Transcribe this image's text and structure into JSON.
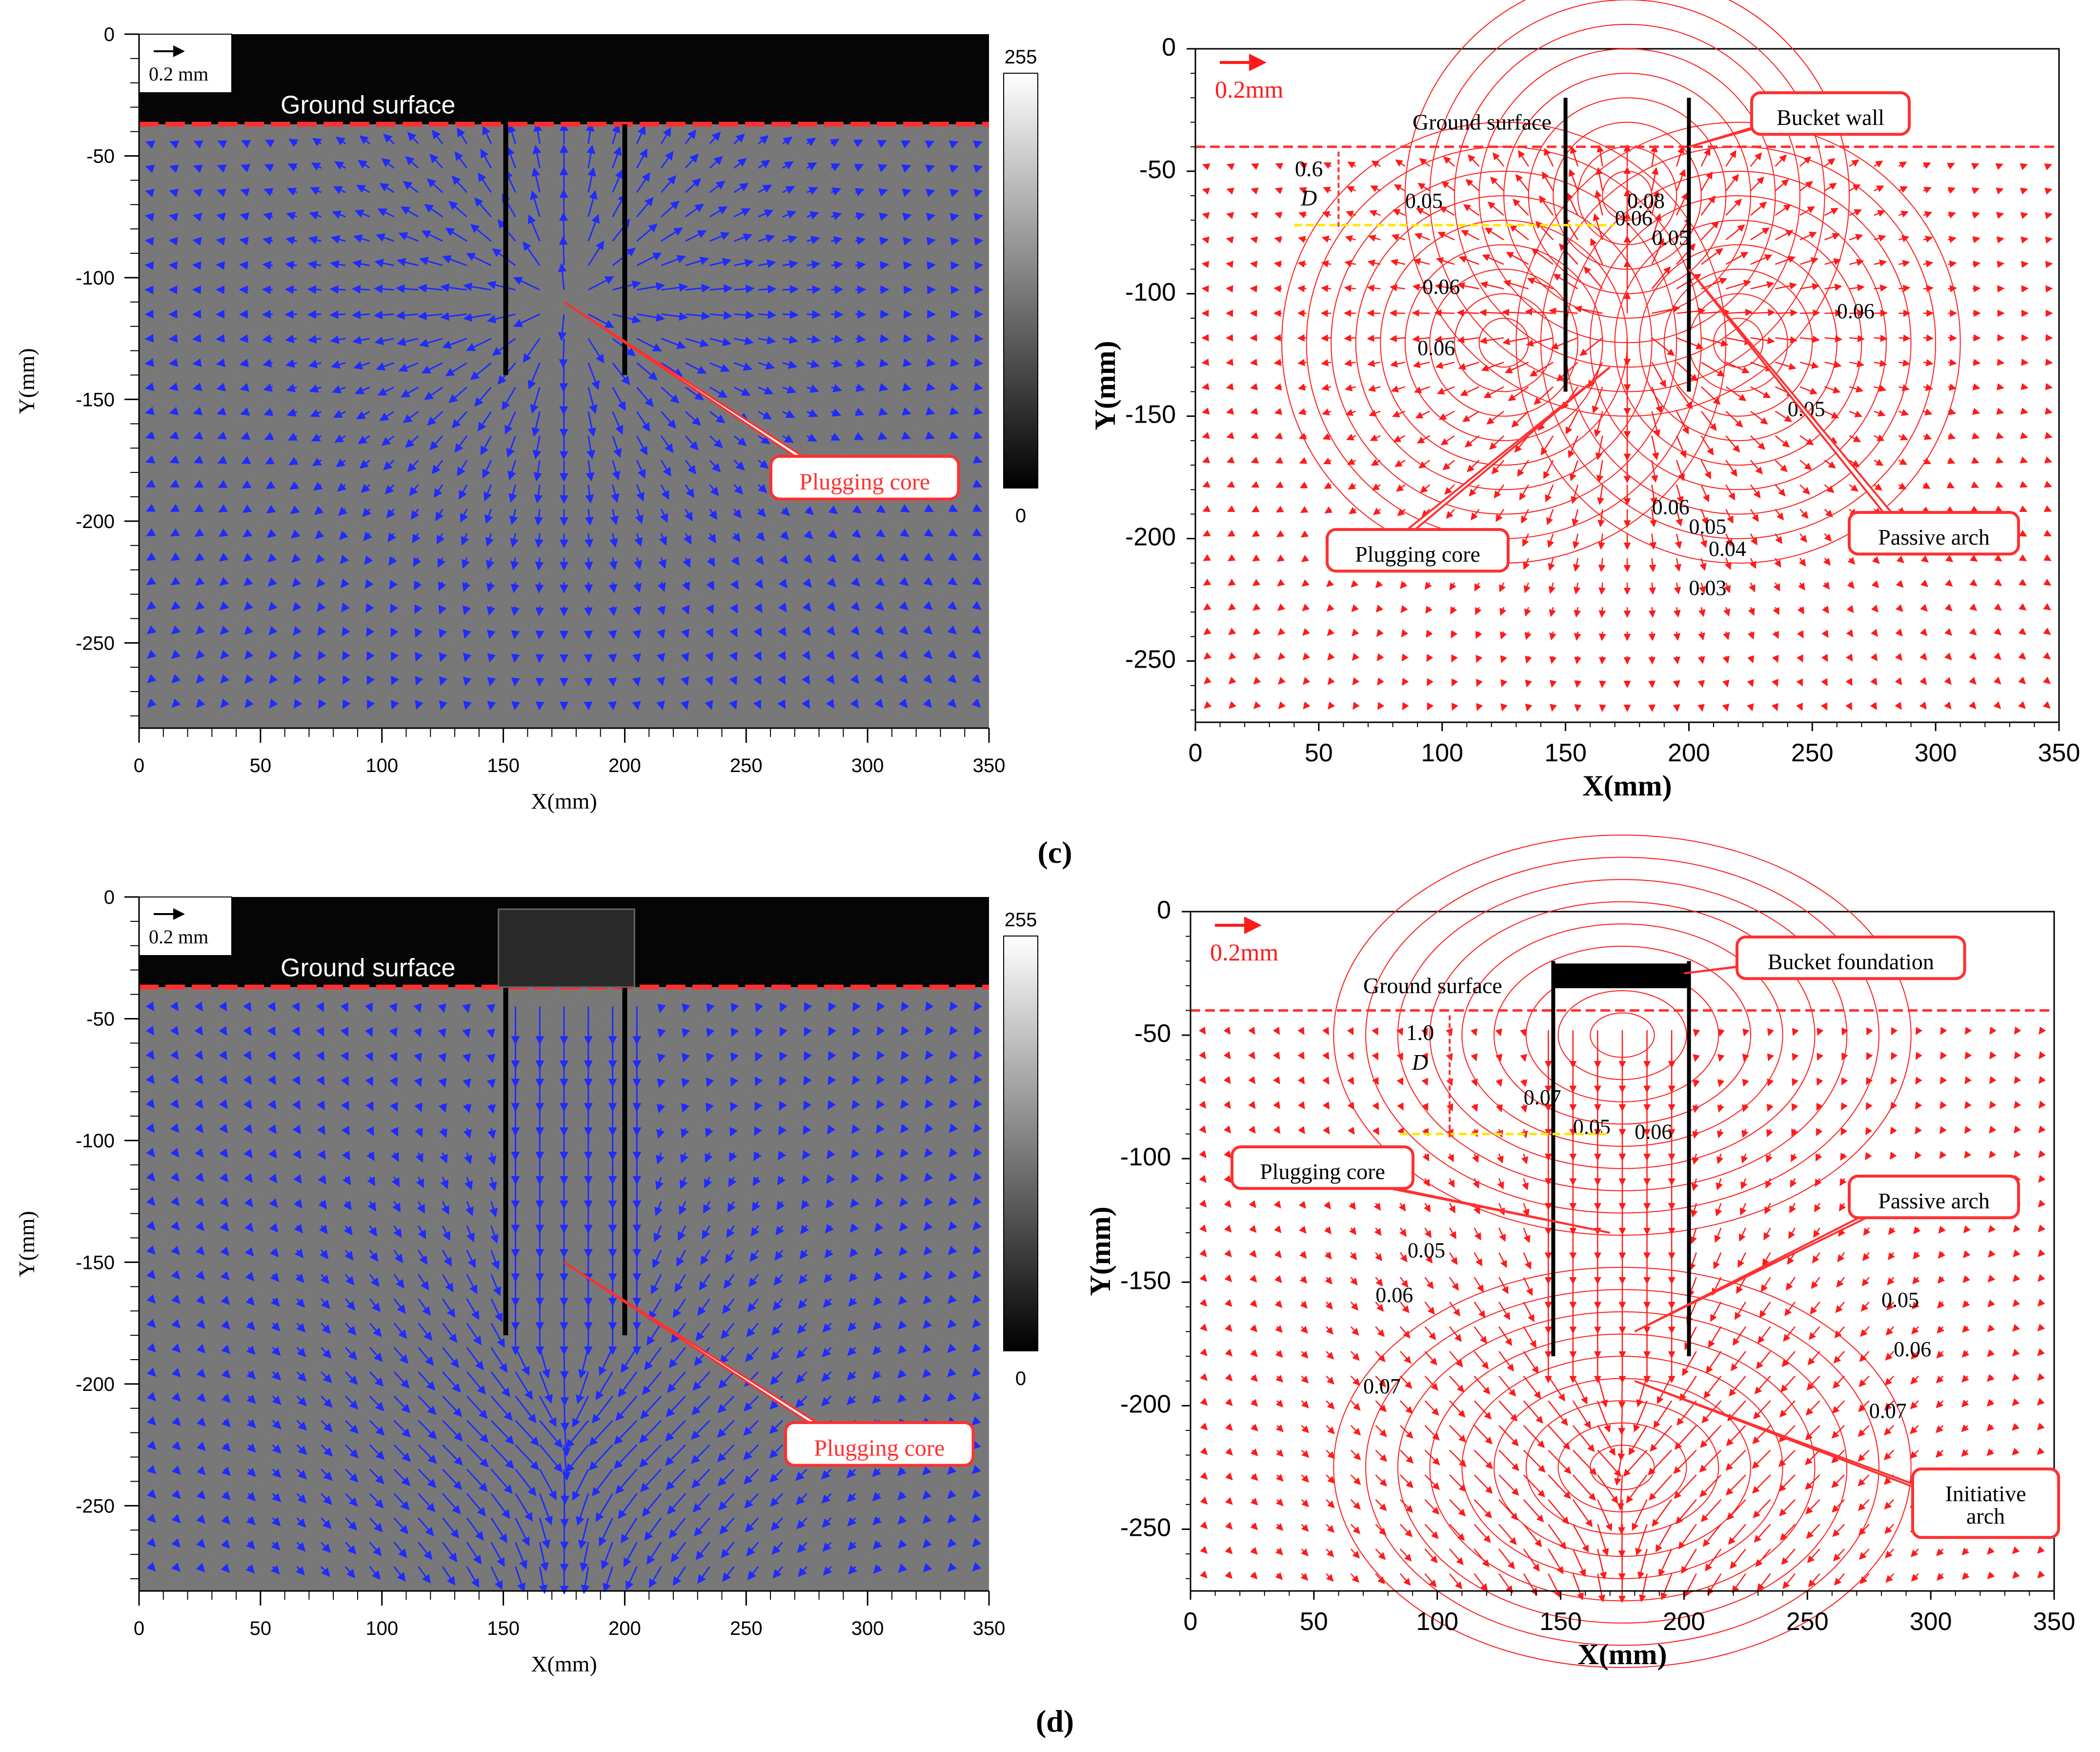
{
  "panel_labels": [
    "(c)",
    "(d)"
  ],
  "chart_data": [
    {
      "id": "c-left",
      "type": "scatter",
      "subtype": "vector-field over grayscale PIV image",
      "xlabel": "X(mm)",
      "ylabel": "Y(mm)",
      "xlim": [
        0,
        350
      ],
      "ylim": [
        -285,
        0
      ],
      "xticks": [
        0,
        50,
        100,
        150,
        200,
        250,
        300,
        350
      ],
      "yticks": [
        0,
        -50,
        -100,
        -150,
        -200,
        -250
      ],
      "scale_label": "0.2 mm",
      "colorbar": {
        "max": "255",
        "min": "0"
      },
      "annotations": [
        {
          "text": "Ground surface",
          "y": -37
        },
        {
          "text": "Plugging core",
          "x": 175,
          "y": -110
        }
      ],
      "bucket_walls_x": [
        151,
        200
      ],
      "bucket_wall_tip_y": -140,
      "arrow_color": "#1f2bff",
      "field": "suction-out"
    },
    {
      "id": "c-right",
      "type": "scatter",
      "subtype": "vector-field with displacement contours",
      "xlabel": "X(mm)",
      "ylabel": "Y(mm)",
      "xlim": [
        0,
        350
      ],
      "ylim": [
        -275,
        0
      ],
      "xticks": [
        0,
        50,
        100,
        150,
        200,
        250,
        300,
        350
      ],
      "yticks": [
        0,
        -50,
        -100,
        -150,
        -200,
        -250
      ],
      "scale_label": "0.2mm",
      "ground_label": "Ground surface",
      "depth_label": {
        "value": "0.6",
        "unit": "D"
      },
      "contour_labels": [
        "0.05",
        "0.06",
        "0.08",
        "0.06",
        "0.05",
        "0.06",
        "0.06",
        "0.05",
        "0.06",
        "0.05",
        "0.04",
        "0.03"
      ],
      "annotations": [
        {
          "text": "Bucket wall",
          "x": 200,
          "y": -40
        },
        {
          "text": "Plugging core",
          "x": 168,
          "y": -130
        },
        {
          "text": "Passive arch",
          "x": 200,
          "y": -90
        }
      ],
      "bucket_walls_x": [
        150,
        200
      ],
      "bucket_wall_tip_y": -140,
      "arrow_color": "#ff1a1a",
      "field": "suction-out"
    },
    {
      "id": "d-left",
      "type": "scatter",
      "subtype": "vector-field over grayscale PIV image",
      "xlabel": "X(mm)",
      "ylabel": "Y(mm)",
      "xlim": [
        0,
        350
      ],
      "ylim": [
        -285,
        0
      ],
      "xticks": [
        0,
        50,
        100,
        150,
        200,
        250,
        300,
        350
      ],
      "yticks": [
        0,
        -50,
        -100,
        -150,
        -200,
        -250
      ],
      "scale_label": "0.2 mm",
      "colorbar": {
        "max": "255",
        "min": "0"
      },
      "annotations": [
        {
          "text": "Ground surface",
          "y": -37
        },
        {
          "text": "Plugging core",
          "x": 175,
          "y": -150
        }
      ],
      "bucket_walls_x": [
        151,
        200
      ],
      "bucket_wall_tip_y": -180,
      "arrow_color": "#1f2bff",
      "field": "downward"
    },
    {
      "id": "d-right",
      "type": "scatter",
      "subtype": "vector-field with displacement contours",
      "xlabel": "X(mm)",
      "ylabel": "Y(mm)",
      "xlim": [
        0,
        350
      ],
      "ylim": [
        -275,
        0
      ],
      "xticks": [
        0,
        50,
        100,
        150,
        200,
        250,
        300,
        350
      ],
      "yticks": [
        0,
        -50,
        -100,
        -150,
        -200,
        -250
      ],
      "scale_label": "0.2mm",
      "ground_label": "Ground surface",
      "depth_label": {
        "value": "1.0",
        "unit": "D"
      },
      "contour_labels": [
        "0.07",
        "0.06",
        "0.05",
        "0.05",
        "0.06",
        "0.07",
        "0.05",
        "0.06",
        "0.07"
      ],
      "annotations": [
        {
          "text": "Bucket foundation",
          "x": 200,
          "y": -25
        },
        {
          "text": "Plugging core",
          "x": 170,
          "y": -130
        },
        {
          "text": "Passive arch",
          "x": 180,
          "y": -170
        },
        {
          "text": "Initiative arch",
          "x": 180,
          "y": -190
        }
      ],
      "bucket_walls_x": [
        147,
        202
      ],
      "bucket_wall_tip_y": -180,
      "arrow_color": "#ff1a1a",
      "field": "downward"
    }
  ]
}
